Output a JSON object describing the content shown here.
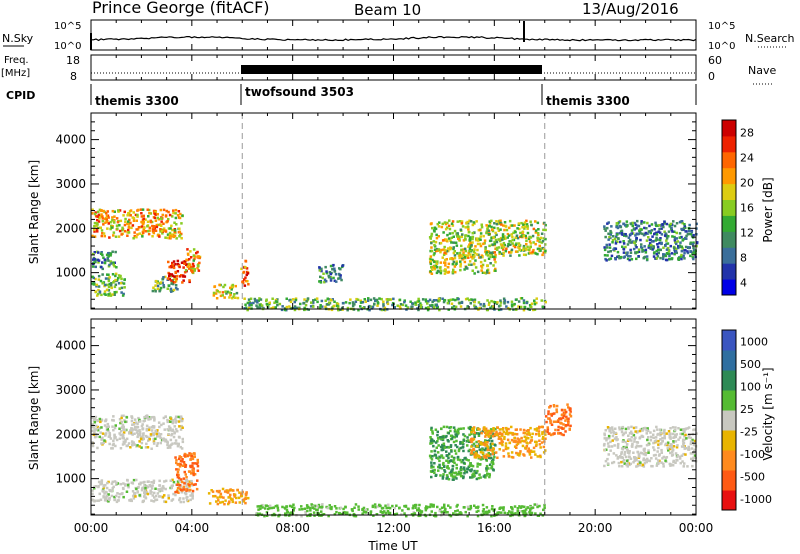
{
  "header": {
    "title": "Prince George (fitACF)",
    "beam": "Beam 10",
    "date": "13/Aug/2016"
  },
  "noise_panel": {
    "left_label": "N.Sky",
    "right_label": "N.Search",
    "left_ticks": [
      "10^5",
      "10^0"
    ],
    "right_ticks": [
      "10^5",
      "10^0"
    ]
  },
  "freq_panel": {
    "label_top": "Freq.",
    "label_unit": "[MHz]",
    "right_label": "Nave",
    "left_ticks": [
      "18",
      "8"
    ],
    "right_ticks": [
      "60",
      "0"
    ]
  },
  "cpid_panel": {
    "label": "CPID",
    "segments": [
      {
        "name": "themis 3300",
        "start_hour": 0,
        "end_hour": 6
      },
      {
        "name": "twofsound 3503",
        "start_hour": 6,
        "end_hour": 18
      },
      {
        "name": "themis 3300",
        "start_hour": 18,
        "end_hour": 24
      }
    ]
  },
  "power_colorbar": {
    "label": "Power [dB]",
    "ticks": [
      "28",
      "24",
      "20",
      "16",
      "12",
      "8",
      "4"
    ],
    "colors": [
      "#0000e6",
      "#2233aa",
      "#3a6e9a",
      "#3f8a60",
      "#33aa33",
      "#88cc22",
      "#ddcc11",
      "#ff9900",
      "#ff6600",
      "#ee2200",
      "#cc0000"
    ]
  },
  "velocity_colorbar": {
    "label": "Velocity [m s⁻¹]",
    "ticks": [
      "1000",
      "500",
      "100",
      "25",
      "-25",
      "-100",
      "-500",
      "-1000"
    ],
    "colors": [
      "#3a55c0",
      "#2f6fa0",
      "#2e8a55",
      "#55bb33",
      "#c8c8c0",
      "#e8b400",
      "#ff8a1e",
      "#ff5a14",
      "#e81010"
    ]
  },
  "axes": {
    "ylabel": "Slant Range [km]",
    "xlabel": "Time UT",
    "yticks": [
      "4000",
      "3000",
      "2000",
      "1000"
    ],
    "xticks": [
      "00:00",
      "04:00",
      "08:00",
      "12:00",
      "16:00",
      "20:00",
      "00:00"
    ]
  },
  "chart_data": {
    "type": "heatmap",
    "title": "Prince George (fitACF)",
    "x_hours": [
      0,
      24
    ],
    "ylim_km": [
      180,
      4600
    ],
    "mode_change_hours": [
      6,
      18
    ],
    "power_regions": [
      {
        "h0": 0.0,
        "h1": 3.6,
        "r0": 1800,
        "r1": 2450,
        "dB": 20
      },
      {
        "h0": 0.0,
        "h1": 1.0,
        "r0": 1100,
        "r1": 1500,
        "dB": 8
      },
      {
        "h0": 0.0,
        "h1": 1.3,
        "r0": 500,
        "r1": 1000,
        "dB": 12
      },
      {
        "h0": 2.4,
        "h1": 3.4,
        "r0": 600,
        "r1": 950,
        "dB": 12
      },
      {
        "h0": 3.0,
        "h1": 3.9,
        "r0": 800,
        "r1": 1300,
        "dB": 28
      },
      {
        "h0": 3.7,
        "h1": 4.3,
        "r0": 1000,
        "r1": 1600,
        "dB": 20
      },
      {
        "h0": 4.8,
        "h1": 5.8,
        "r0": 450,
        "r1": 750,
        "dB": 16
      },
      {
        "h0": 5.9,
        "h1": 6.2,
        "r0": 700,
        "r1": 1300,
        "dB": 24
      },
      {
        "h0": 6.0,
        "h1": 18.0,
        "r0": 180,
        "r1": 450,
        "dB": 12
      },
      {
        "h0": 9.0,
        "h1": 10.0,
        "r0": 800,
        "r1": 1200,
        "dB": 8
      },
      {
        "h0": 13.4,
        "h1": 16.0,
        "r0": 1000,
        "r1": 2200,
        "dB": 16
      },
      {
        "h0": 16.0,
        "h1": 18.0,
        "r0": 1400,
        "r1": 2200,
        "dB": 16
      },
      {
        "h0": 20.3,
        "h1": 24.0,
        "r0": 1300,
        "r1": 2200,
        "dB": 8
      }
    ],
    "velocity_regions": [
      {
        "h0": 0.0,
        "h1": 3.6,
        "r0": 1700,
        "r1": 2450,
        "v": 0
      },
      {
        "h0": 0.0,
        "h1": 4.0,
        "r0": 500,
        "r1": 1000,
        "v": 0
      },
      {
        "h0": 3.3,
        "h1": 4.2,
        "r0": 700,
        "r1": 1600,
        "v": -500
      },
      {
        "h0": 4.6,
        "h1": 6.2,
        "r0": 450,
        "r1": 800,
        "v": -100
      },
      {
        "h0": 6.5,
        "h1": 18.0,
        "r0": 180,
        "r1": 450,
        "v": 50
      },
      {
        "h0": 13.4,
        "h1": 16.0,
        "r0": 1000,
        "r1": 2200,
        "v": 100
      },
      {
        "h0": 15.0,
        "h1": 18.0,
        "r0": 1500,
        "r1": 2200,
        "v": -100
      },
      {
        "h0": 18.0,
        "h1": 19.0,
        "r0": 2000,
        "r1": 2700,
        "v": -500
      },
      {
        "h0": 20.3,
        "h1": 24.0,
        "r0": 1300,
        "r1": 2200,
        "v": 0
      }
    ]
  }
}
